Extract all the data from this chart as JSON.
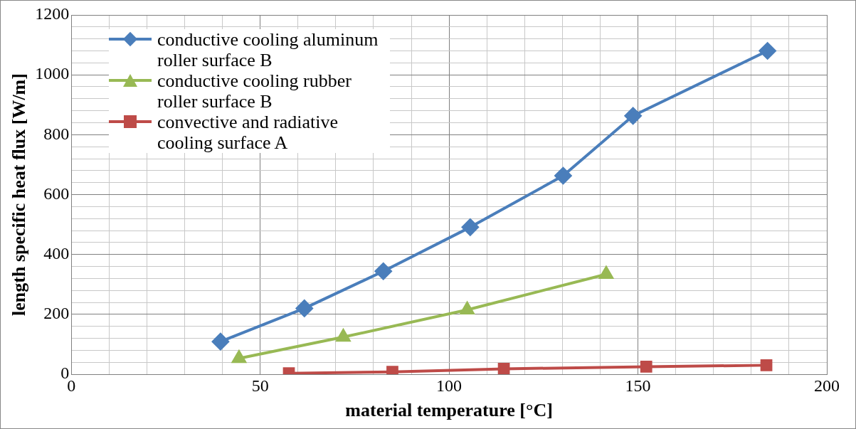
{
  "chart_data": {
    "type": "line",
    "xlabel": "material temperature [°C]",
    "ylabel": "length specific heat flux [W/m]",
    "xlim": [
      0,
      200
    ],
    "ylim": [
      0,
      1200
    ],
    "xticks": [
      0,
      {
        "value": 10,
        "label": null
      },
      {
        "value": 20,
        "label": null
      },
      {
        "value": 30,
        "label": null
      },
      {
        "value": 40,
        "label": null
      },
      50,
      {
        "value": 60,
        "label": null
      },
      {
        "value": 70,
        "label": null
      },
      {
        "value": 80,
        "label": null
      },
      {
        "value": 90,
        "label": null
      },
      100,
      {
        "value": 110,
        "label": null
      },
      {
        "value": 120,
        "label": null
      },
      {
        "value": 130,
        "label": null
      },
      {
        "value": 140,
        "label": null
      },
      150,
      {
        "value": 160,
        "label": null
      },
      {
        "value": 170,
        "label": null
      },
      {
        "value": 180,
        "label": null
      },
      {
        "value": 190,
        "label": null
      },
      200
    ],
    "yticks": [
      0,
      {
        "value": 40,
        "label": null
      },
      {
        "value": 80,
        "label": null
      },
      {
        "value": 120,
        "label": null
      },
      {
        "value": 160,
        "label": null
      },
      200,
      {
        "value": 240,
        "label": null
      },
      {
        "value": 280,
        "label": null
      },
      {
        "value": 320,
        "label": null
      },
      {
        "value": 360,
        "label": null
      },
      400,
      {
        "value": 440,
        "label": null
      },
      {
        "value": 480,
        "label": null
      },
      {
        "value": 520,
        "label": null
      },
      {
        "value": 560,
        "label": null
      },
      600,
      {
        "value": 640,
        "label": null
      },
      {
        "value": 680,
        "label": null
      },
      {
        "value": 720,
        "label": null
      },
      {
        "value": 760,
        "label": null
      },
      800,
      {
        "value": 840,
        "label": null
      },
      {
        "value": 880,
        "label": null
      },
      {
        "value": 920,
        "label": null
      },
      {
        "value": 960,
        "label": null
      },
      1000,
      {
        "value": 1040,
        "label": null
      },
      {
        "value": 1080,
        "label": null
      },
      {
        "value": 1120,
        "label": null
      },
      {
        "value": 1160,
        "label": null
      },
      1200
    ],
    "grid": true,
    "legend": "top left",
    "line_style": "solid",
    "series": [
      {
        "name": "conductive cooling aluminum roller surface B",
        "color": "#4a7ebb",
        "marker": "diamond",
        "x": [
          39.5,
          61.7,
          82.6,
          105.6,
          130.2,
          148.7,
          184.3
        ],
        "values": [
          109,
          220,
          344,
          491,
          663,
          863,
          1080
        ]
      },
      {
        "name": "conductive cooling rubber roller surface B",
        "color": "#98b954",
        "marker": "triangle",
        "x": [
          44.4,
          72,
          104.8,
          141.6
        ],
        "values": [
          53,
          124,
          215,
          334
        ]
      },
      {
        "name": "convective and radiative cooling surface A",
        "color": "#be4b48",
        "marker": "square",
        "x": [
          57.6,
          85,
          114.5,
          152.2,
          184
        ],
        "values": [
          3,
          8,
          18,
          25,
          30
        ]
      }
    ]
  }
}
